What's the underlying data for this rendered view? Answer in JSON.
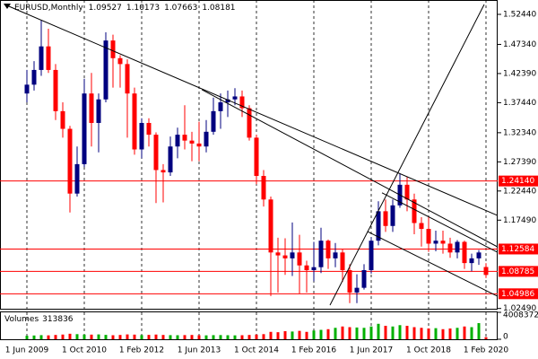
{
  "chart_data": {
    "type": "candlestick",
    "symbol": "EURUSD,Monthly",
    "categories": [
      "1 Jun 2009",
      null,
      null,
      null,
      null,
      null,
      null,
      null,
      "1 Oct 2010",
      null,
      null,
      null,
      null,
      null,
      null,
      null,
      "1 Feb 2012",
      null,
      null,
      null,
      null,
      null,
      null,
      null,
      "1 Jun 2013",
      null,
      null,
      null,
      null,
      null,
      null,
      null,
      "1 Oct 2014",
      null,
      null,
      null,
      null,
      null,
      null,
      null,
      "1 Feb 2016",
      null,
      null,
      null,
      null,
      null,
      null,
      null,
      "1 Jun 2017",
      null,
      null,
      null,
      null,
      null,
      null,
      null,
      "1 Oct 2018",
      null,
      null,
      null,
      null,
      null,
      null,
      null,
      "1 Feb 2020"
    ],
    "open": [
      1.39,
      1.405,
      1.43,
      1.47,
      1.43,
      1.36,
      1.33,
      1.22,
      1.27,
      1.39,
      1.34,
      1.38,
      1.48,
      1.45,
      1.44,
      1.39,
      1.295,
      1.34,
      1.32,
      1.26,
      1.256,
      1.3,
      1.32,
      1.31,
      1.305,
      1.3,
      1.325,
      1.36,
      1.375,
      1.38,
      1.385,
      1.365,
      1.315,
      1.25,
      1.21,
      1.12,
      1.115,
      1.11,
      1.12,
      1.098,
      1.09,
      1.095,
      1.14,
      1.11,
      1.12,
      1.09,
      1.052,
      1.06,
      1.09,
      1.14,
      1.19,
      1.165,
      1.2,
      1.235,
      1.21,
      1.17,
      1.16,
      1.135,
      1.14,
      1.135,
      1.12,
      1.138,
      1.102,
      1.11,
      1.09527
    ],
    "high": [
      1.43,
      1.445,
      1.514,
      1.5,
      1.44,
      1.375,
      1.335,
      1.3,
      1.415,
      1.425,
      1.39,
      1.494,
      1.49,
      1.455,
      1.448,
      1.4,
      1.348,
      1.348,
      1.324,
      1.27,
      1.317,
      1.332,
      1.37,
      1.325,
      1.342,
      1.345,
      1.383,
      1.39,
      1.395,
      1.399,
      1.395,
      1.37,
      1.32,
      1.26,
      1.215,
      1.145,
      1.144,
      1.171,
      1.15,
      1.106,
      1.138,
      1.162,
      1.142,
      1.136,
      1.125,
      1.1,
      1.083,
      1.1,
      1.146,
      1.207,
      1.21,
      1.21,
      1.254,
      1.248,
      1.22,
      1.18,
      1.181,
      1.157,
      1.157,
      1.145,
      1.141,
      1.14,
      1.118,
      1.124,
      1.10173
    ],
    "low": [
      1.375,
      1.395,
      1.42,
      1.425,
      1.345,
      1.315,
      1.188,
      1.215,
      1.265,
      1.3,
      1.29,
      1.375,
      1.4,
      1.4,
      1.315,
      1.286,
      1.28,
      1.3,
      1.204,
      1.205,
      1.25,
      1.28,
      1.295,
      1.275,
      1.275,
      1.29,
      1.32,
      1.33,
      1.35,
      1.37,
      1.35,
      1.31,
      1.236,
      1.198,
      1.046,
      1.052,
      1.082,
      1.08,
      1.05,
      1.052,
      1.071,
      1.085,
      1.092,
      1.095,
      1.07,
      1.034,
      1.034,
      1.057,
      1.084,
      1.132,
      1.155,
      1.155,
      1.196,
      1.19,
      1.151,
      1.13,
      1.121,
      1.122,
      1.118,
      1.111,
      1.11,
      1.092,
      1.088,
      1.099,
      1.07663
    ],
    "close": [
      1.405,
      1.43,
      1.47,
      1.43,
      1.36,
      1.33,
      1.22,
      1.27,
      1.39,
      1.34,
      1.38,
      1.48,
      1.45,
      1.44,
      1.39,
      1.295,
      1.34,
      1.32,
      1.26,
      1.256,
      1.3,
      1.32,
      1.31,
      1.305,
      1.3,
      1.325,
      1.36,
      1.375,
      1.38,
      1.385,
      1.365,
      1.315,
      1.25,
      1.21,
      1.12,
      1.115,
      1.11,
      1.12,
      1.098,
      1.09,
      1.095,
      1.14,
      1.11,
      1.12,
      1.09,
      1.052,
      1.06,
      1.09,
      1.14,
      1.19,
      1.165,
      1.2,
      1.235,
      1.21,
      1.17,
      1.16,
      1.135,
      1.14,
      1.135,
      1.12,
      1.138,
      1.102,
      1.11,
      1.12,
      1.08181
    ],
    "colors": {
      "up": "#00007f",
      "down": "#ff0000"
    },
    "ylim": [
      1.0229,
      1.5488
    ],
    "yticks": [
      {
        "value": 1.5244,
        "label": "1.52440"
      },
      {
        "value": 1.4734,
        "label": "1.47340"
      },
      {
        "value": 1.4239,
        "label": "1.42390"
      },
      {
        "value": 1.3744,
        "label": "1.37440"
      },
      {
        "value": 1.3234,
        "label": "1.32340"
      },
      {
        "value": 1.2739,
        "label": "1.27390"
      },
      {
        "value": 1.2244,
        "label": "1.22440"
      },
      {
        "value": 1.1749,
        "label": "1.17490"
      },
      {
        "value": 1.0249,
        "label": "1.02490"
      }
    ],
    "grid": true,
    "levels": {
      "color": "#ff0000",
      "values": [
        {
          "value": 1.2414,
          "label": "1.24140"
        },
        {
          "value": 1.12584,
          "label": "1.12584"
        },
        {
          "value": 1.08785,
          "label": "1.08785"
        },
        {
          "value": 1.04986,
          "label": "1.04986"
        }
      ]
    },
    "trendlines": {
      "color": "#000000",
      "lines": [
        {
          "x": [
            -3.1,
            65.6
          ],
          "y": [
            1.5412,
            1.1829
          ]
        },
        {
          "x": [
            24.4,
            65.6
          ],
          "y": [
            1.3964,
            1.1296
          ]
        },
        {
          "x": [
            42.25,
            63.75
          ],
          "y": [
            1.0305,
            1.5412
          ]
        },
        {
          "x": [
            47.5,
            65.6
          ],
          "y": [
            1.1555,
            1.0457
          ]
        },
        {
          "x": [
            49.5,
            65.6
          ],
          "y": [
            1.2214,
            1.1204
          ]
        }
      ]
    },
    "volume": {
      "name": "Volumes",
      "values": [
        520000,
        560000,
        610000,
        580000,
        640000,
        700000,
        820000,
        760000,
        700000,
        690000,
        720000,
        650000,
        600000,
        640000,
        720000,
        690000,
        620000,
        650000,
        700000,
        640000,
        610000,
        600000,
        620000,
        640000,
        600000,
        580000,
        610000,
        620000,
        600000,
        580000,
        600000,
        640000,
        700000,
        760000,
        1100000,
        1050000,
        1200000,
        1150000,
        1250000,
        1100000,
        1300000,
        1400000,
        1500000,
        1700000,
        1900000,
        1800000,
        1750000,
        1700000,
        1900000,
        2300000,
        2000000,
        1900000,
        2100000,
        2000000,
        1800000,
        1700000,
        1600000,
        1650000,
        1500000,
        1600000,
        1700000,
        1900000,
        1800000,
        2400000,
        313836
      ],
      "ylim": [
        0,
        4008372
      ],
      "yticks": [
        0,
        4008372
      ],
      "colors": {
        "up": "#00b000",
        "down": "#ff0000"
      }
    }
  }
}
